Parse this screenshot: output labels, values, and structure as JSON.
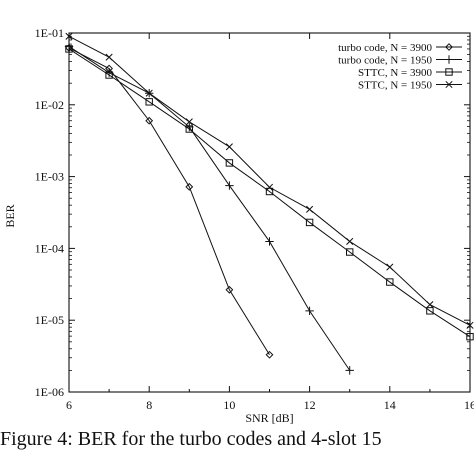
{
  "chart_data": {
    "type": "line",
    "xlabel": "SNR [dB]",
    "ylabel": "BER",
    "xlim": [
      6,
      16
    ],
    "ylim": [
      1e-06,
      0.1
    ],
    "yscale": "log",
    "x_ticks": [
      "6",
      "8",
      "10",
      "12",
      "14",
      "16"
    ],
    "y_ticks": [
      "1E-06",
      "1E-05",
      "1E-04",
      "1E-03",
      "1E-02",
      "1E-01"
    ],
    "grid": false,
    "legend_position": "top-right",
    "series": [
      {
        "name": "turbo code, N = 3900",
        "marker": "diamond",
        "x": [
          6,
          7,
          8,
          9,
          10,
          11
        ],
        "y": [
          0.062,
          0.032,
          0.006,
          0.00072,
          2.65e-05,
          3.3e-06
        ]
      },
      {
        "name": "turbo code, N = 1950",
        "marker": "plus",
        "x": [
          6,
          7,
          8,
          9,
          10,
          11,
          12,
          13
        ],
        "y": [
          0.065,
          0.028,
          0.0145,
          0.0049,
          0.00075,
          0.000125,
          1.35e-05,
          2e-06
        ]
      },
      {
        "name": "STTC, N = 3900",
        "marker": "square",
        "x": [
          6,
          7,
          8,
          9,
          10,
          11,
          12,
          13,
          14,
          15,
          16
        ],
        "y": [
          0.06,
          0.026,
          0.011,
          0.0046,
          0.00155,
          0.00062,
          0.00023,
          8.9e-05,
          3.4e-05,
          1.35e-05,
          5.9e-06
        ]
      },
      {
        "name": "STTC, N = 1950",
        "marker": "cross",
        "x": [
          6,
          7,
          8,
          9,
          10,
          11,
          12,
          13,
          14,
          15,
          16
        ],
        "y": [
          0.09,
          0.046,
          0.0145,
          0.0058,
          0.0026,
          0.00071,
          0.00035,
          0.000125,
          5.5e-05,
          1.65e-05,
          8.5e-06
        ]
      }
    ]
  },
  "caption": "Figure 4: BER for the turbo codes and 4-slot 15"
}
